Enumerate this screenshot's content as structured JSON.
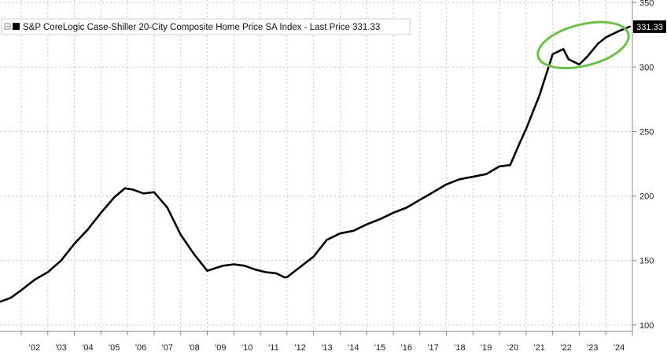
{
  "chart_data": {
    "type": "line",
    "title": "",
    "xlabel": "",
    "ylabel": "",
    "x_tick_labels": [
      "'02",
      "'03",
      "'04",
      "'05",
      "'06",
      "'07",
      "'08",
      "'09",
      "'10",
      "'11",
      "'12",
      "'13",
      "'14",
      "'15",
      "'16",
      "'17",
      "'18",
      "'19",
      "'20",
      "'21",
      "'22",
      "'23",
      "'24"
    ],
    "x_range": [
      2001.2,
      2025.0
    ],
    "y_axis_side": "right",
    "y_ticks": [
      100,
      150,
      200,
      250,
      300,
      350
    ],
    "y_tick_labels": [
      "100",
      "150",
      "200",
      "250",
      "300",
      "350"
    ],
    "ylim": [
      95,
      352
    ],
    "grid": "dotted",
    "legend_position": "top-left",
    "legend_label": "S&P CoreLogic Case-Shiller 20-City Composite Home Price SA Index - Last Price 331.33",
    "series": [
      {
        "color": "#000000",
        "x": [
          2001.2,
          2001.6,
          2002.0,
          2002.5,
          2003.0,
          2003.5,
          2004.0,
          2004.5,
          2005.0,
          2005.5,
          2005.9,
          2006.2,
          2006.6,
          2007.0,
          2007.5,
          2008.0,
          2008.5,
          2009.0,
          2009.3,
          2009.6,
          2010.0,
          2010.4,
          2010.8,
          2011.2,
          2011.6,
          2011.9,
          2012.0,
          2012.5,
          2013.0,
          2013.5,
          2014.0,
          2014.5,
          2015.0,
          2015.5,
          2016.0,
          2016.5,
          2017.0,
          2017.5,
          2018.0,
          2018.5,
          2019.0,
          2019.5,
          2020.0,
          2020.4,
          2020.8,
          2021.0,
          2021.5,
          2022.0,
          2022.4,
          2022.6,
          2023.0,
          2023.3,
          2023.7,
          2024.0,
          2024.5,
          2024.9
        ],
        "y": [
          118,
          121,
          127,
          135,
          141,
          150,
          163,
          174,
          187,
          199,
          206,
          205,
          202,
          203,
          191,
          170,
          155,
          142,
          144,
          146,
          147,
          146,
          143,
          141,
          140,
          137,
          137,
          145,
          153,
          166,
          171,
          173,
          178,
          182,
          187,
          191,
          197,
          203,
          209,
          213,
          215,
          217,
          223,
          224,
          243,
          252,
          278,
          310,
          314,
          306,
          302,
          308,
          318,
          323,
          328,
          331.33
        ]
      }
    ],
    "last_price_label": "331.33",
    "annotation": {
      "type": "ellipse",
      "color": "#6cc04a",
      "x_center": 2023.15,
      "y_center": 317,
      "x_radius": 1.75,
      "y_radius": 16
    }
  }
}
